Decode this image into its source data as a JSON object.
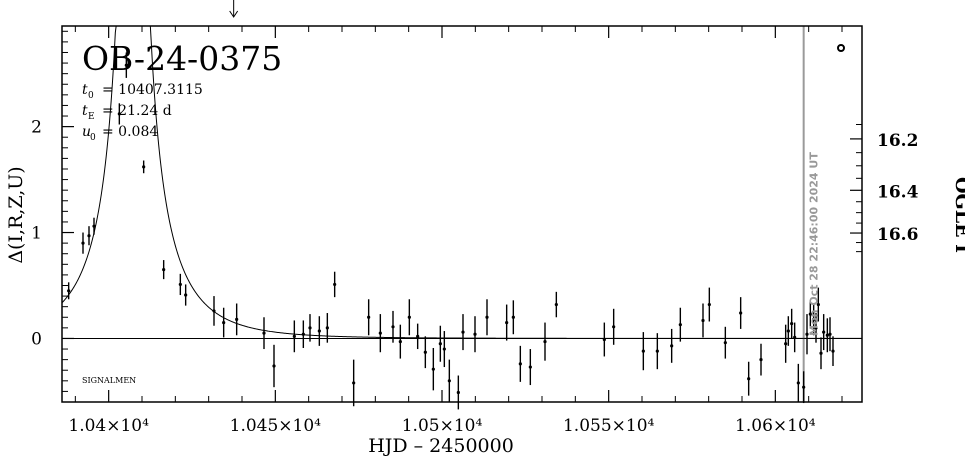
{
  "chart_data": {
    "type": "scatter",
    "title": "OB-24-0375",
    "params": [
      {
        "sym": "t",
        "sub": "0",
        "text": "= 10407.3115"
      },
      {
        "sym": "t",
        "sub": "E",
        "text": "= 21.24 d"
      },
      {
        "sym": "u",
        "sub": "0",
        "text": "= 0.084"
      }
    ],
    "signature": "SIGNALMEN",
    "timestamp": "Mon Oct 28 22:46:00 2024 UT",
    "xlabel": "HJD – 2450000",
    "ylabel_left": "Δ(I,R,Z,U)",
    "ylabel_right": "OGLE I",
    "xlim": [
      10386,
      10626
    ],
    "ylim": [
      -0.6,
      2.95
    ],
    "x_ticks": [
      {
        "value": 10400,
        "label": "1.04×10⁴"
      },
      {
        "value": 10450,
        "label": "1.045×10⁴"
      },
      {
        "value": 10500,
        "label": "1.05×10⁴"
      },
      {
        "value": 10550,
        "label": "1.055×10⁴"
      },
      {
        "value": 10600,
        "label": "1.06×10⁴"
      }
    ],
    "y_ticks_left": [
      {
        "value": 0,
        "label": "0"
      },
      {
        "value": 1,
        "label": "1"
      },
      {
        "value": 2,
        "label": "2"
      }
    ],
    "y_ticks_right": [
      {
        "mag": 16.2,
        "label": "16.2"
      },
      {
        "mag": 16.4,
        "label": "16.4"
      },
      {
        "mag": 16.6,
        "label": "16.6"
      }
    ],
    "mag_base": 17.35,
    "model": {
      "t0": 10407.3115,
      "tE": 21.24,
      "u0": 0.084
    },
    "now_line_x": 10608.5,
    "event_arrow_x": 10437.5,
    "legend_marker": "open circle",
    "series": [
      {
        "points": [
          [
            10388.0,
            0.45,
            0.08
          ],
          [
            10392.3,
            0.9,
            0.1
          ],
          [
            10394.1,
            0.97,
            0.09
          ],
          [
            10395.6,
            1.06,
            0.08
          ],
          [
            10403.2,
            2.12,
            0.1
          ],
          [
            10405.3,
            2.58,
            0.12
          ],
          [
            10410.5,
            1.62,
            0.06
          ],
          [
            10416.5,
            0.65,
            0.09
          ],
          [
            10421.5,
            0.51,
            0.1
          ],
          [
            10423.1,
            0.41,
            0.1
          ],
          [
            10431.6,
            0.26,
            0.14
          ],
          [
            10434.5,
            0.15,
            0.14
          ],
          [
            10438.4,
            0.18,
            0.15
          ],
          [
            10446.6,
            0.05,
            0.15
          ],
          [
            10449.6,
            -0.26,
            0.2
          ],
          [
            10455.7,
            0.02,
            0.15
          ],
          [
            10458.4,
            0.04,
            0.13
          ],
          [
            10460.4,
            0.1,
            0.13
          ],
          [
            10463.2,
            0.07,
            0.14
          ],
          [
            10465.6,
            0.1,
            0.14
          ],
          [
            10467.8,
            0.51,
            0.12
          ],
          [
            10473.5,
            -0.42,
            0.22
          ],
          [
            10478.0,
            0.2,
            0.17
          ],
          [
            10481.5,
            0.05,
            0.18
          ],
          [
            10485.3,
            0.11,
            0.15
          ],
          [
            10487.5,
            -0.03,
            0.16
          ],
          [
            10490.2,
            0.2,
            0.17
          ],
          [
            10492.7,
            0.02,
            0.12
          ],
          [
            10495.0,
            -0.13,
            0.15
          ],
          [
            10497.4,
            -0.29,
            0.2
          ],
          [
            10499.5,
            -0.05,
            0.17
          ],
          [
            10500.7,
            -0.1,
            0.17
          ],
          [
            10502.2,
            -0.4,
            0.2
          ],
          [
            10504.9,
            -0.51,
            0.16
          ],
          [
            10506.3,
            0.06,
            0.17
          ],
          [
            10509.9,
            0.04,
            0.17
          ],
          [
            10513.5,
            0.2,
            0.17
          ],
          [
            10519.4,
            0.15,
            0.17
          ],
          [
            10521.4,
            0.2,
            0.16
          ],
          [
            10523.5,
            -0.24,
            0.17
          ],
          [
            10526.5,
            -0.27,
            0.17
          ],
          [
            10530.9,
            -0.03,
            0.18
          ],
          [
            10534.3,
            0.32,
            0.12
          ],
          [
            10548.7,
            -0.01,
            0.16
          ],
          [
            10551.5,
            0.11,
            0.17
          ],
          [
            10560.4,
            -0.12,
            0.18
          ],
          [
            10564.6,
            -0.12,
            0.17
          ],
          [
            10568.9,
            -0.07,
            0.16
          ],
          [
            10571.5,
            0.13,
            0.16
          ],
          [
            10578.3,
            0.17,
            0.16
          ],
          [
            10580.2,
            0.32,
            0.16
          ],
          [
            10585.0,
            -0.04,
            0.15
          ],
          [
            10589.6,
            0.24,
            0.15
          ],
          [
            10592.0,
            -0.38,
            0.16
          ],
          [
            10595.7,
            -0.2,
            0.15
          ],
          [
            10603.1,
            -0.05,
            0.18
          ],
          [
            10603.9,
            0.07,
            0.14
          ],
          [
            10604.9,
            0.14,
            0.14
          ],
          [
            10605.8,
            0.01,
            0.14
          ],
          [
            10606.9,
            -0.42,
            0.18
          ],
          [
            10608.5,
            -0.46,
            0.15
          ],
          [
            10609.5,
            0.04,
            0.19
          ],
          [
            10610.5,
            0.23,
            0.13
          ],
          [
            10611.5,
            0.18,
            0.15
          ],
          [
            10612.2,
            0.1,
            0.14
          ],
          [
            10612.9,
            0.32,
            0.16
          ],
          [
            10613.7,
            -0.14,
            0.15
          ],
          [
            10614.5,
            0.06,
            0.17
          ],
          [
            10615.6,
            0.03,
            0.16
          ],
          [
            10616.4,
            0.04,
            0.16
          ],
          [
            10617.3,
            -0.12,
            0.14
          ]
        ]
      }
    ]
  }
}
